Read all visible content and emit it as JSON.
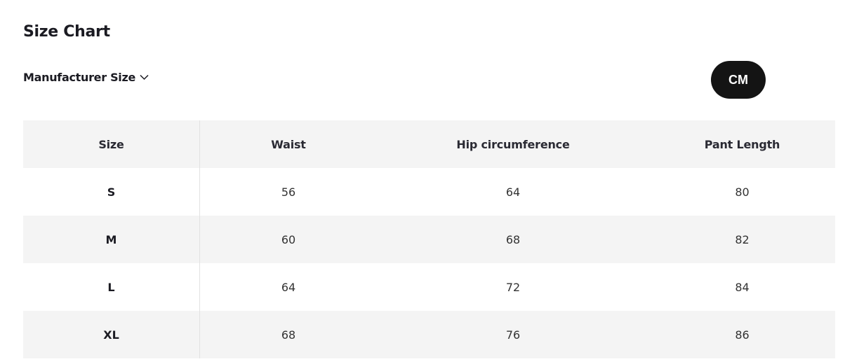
{
  "title": "Size Chart",
  "size_system": {
    "label": "Manufacturer Size",
    "icon": "chevron-down-icon"
  },
  "unit_button": "CM",
  "table": {
    "headers": [
      "Size",
      "Waist",
      "Hip circumference",
      "Pant Length"
    ],
    "rows": [
      [
        "S",
        "56",
        "64",
        "80"
      ],
      [
        "M",
        "60",
        "68",
        "82"
      ],
      [
        "L",
        "64",
        "72",
        "84"
      ],
      [
        "XL",
        "68",
        "76",
        "86"
      ]
    ]
  }
}
